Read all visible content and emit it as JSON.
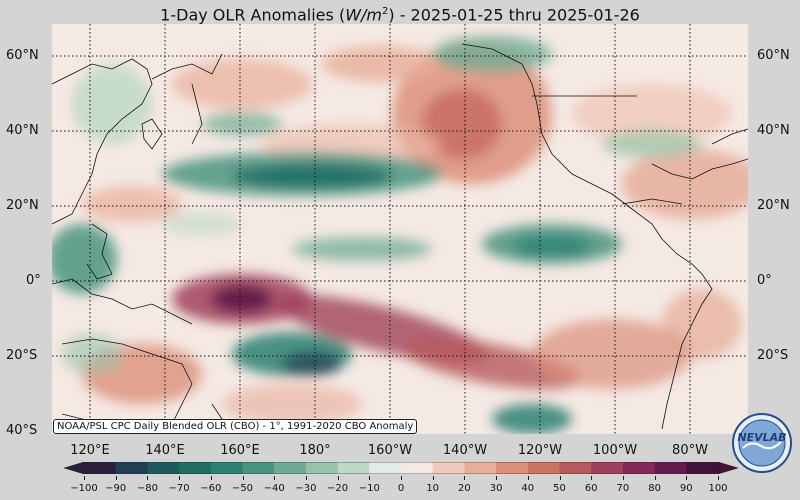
{
  "title": "1-Day OLR Anomalies (W/m²) - 2025-01-25 thru 2025-01-26",
  "title_parts": {
    "prefix": "1-Day OLR Anomalies (",
    "unit_base": "W/m",
    "unit_exp": "2",
    "suffix": ") - 2025-01-25 thru 2025-01-26"
  },
  "credit": "NOAA/PSL CPC Daily Blended OLR (CBO) - 1°, 1991-2020 CBO Anomaly",
  "latitudes": [
    "60°N",
    "40°N",
    "20°N",
    "0°",
    "20°S",
    "40°S"
  ],
  "longitudes": [
    "120°E",
    "140°E",
    "160°E",
    "180°",
    "160°W",
    "140°W",
    "120°W",
    "100°W",
    "80°W"
  ],
  "colorbar": {
    "ticks": [
      "−100",
      "−90",
      "−80",
      "−70",
      "−60",
      "−50",
      "−40",
      "−30",
      "−20",
      "−10",
      "0",
      "10",
      "20",
      "30",
      "40",
      "50",
      "60",
      "70",
      "80",
      "90",
      "100"
    ],
    "min": -100,
    "max": 100,
    "negative_colors": [
      "#2b1e3d",
      "#213f52",
      "#1e5a5c",
      "#1e6e64",
      "#2b8071",
      "#4a9580",
      "#6fab93",
      "#97c3a8",
      "#bdd8c4",
      "#e2ece4"
    ],
    "positive_colors": [
      "#f6e8e2",
      "#f0cbbc",
      "#e8ae99",
      "#dc907b",
      "#cd7364",
      "#b85a5c",
      "#a0415b",
      "#85295a",
      "#661a4f",
      "#431238"
    ]
  },
  "logo": {
    "text": "NEVLAB"
  },
  "colors": {
    "strong_negative": "#1e6e64",
    "strong_positive": "#85295a",
    "neutral": "#f6ece9"
  }
}
